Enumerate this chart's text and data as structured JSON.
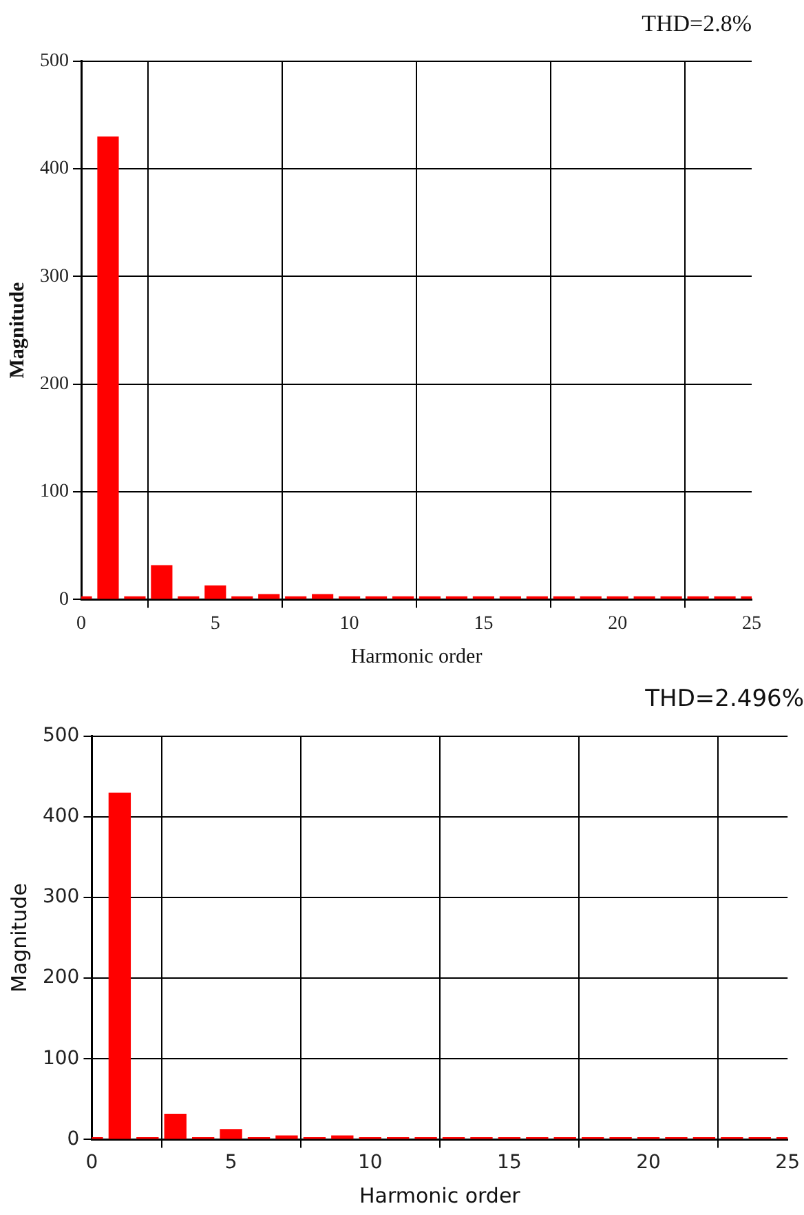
{
  "chart_data": [
    {
      "type": "bar",
      "title": "THD=2.8%",
      "xlabel": "Harmonic order",
      "ylabel": "Magnitude",
      "x": [
        0,
        1,
        2,
        3,
        4,
        5,
        6,
        7,
        8,
        9,
        10,
        11,
        12,
        13,
        14,
        15,
        16,
        17,
        18,
        19,
        20,
        21,
        22,
        23,
        24,
        25
      ],
      "values": [
        3,
        430,
        3,
        32,
        3,
        13,
        3,
        5,
        3,
        5,
        3,
        3,
        3,
        3,
        3,
        3,
        3,
        3,
        3,
        3,
        3,
        3,
        3,
        3,
        3,
        3
      ],
      "color": "#ff0000",
      "xlim": [
        0,
        25
      ],
      "xticks": [
        0,
        5,
        10,
        15,
        20,
        25
      ],
      "ylim": [
        0,
        500
      ],
      "yticks": [
        0,
        100,
        200,
        300,
        400,
        500
      ],
      "grid": true,
      "legend": false
    },
    {
      "type": "bar",
      "title": "THD=2.496%",
      "xlabel": "Harmonic order",
      "ylabel": "Magnitude",
      "x": [
        0,
        1,
        2,
        3,
        4,
        5,
        6,
        7,
        8,
        9,
        10,
        11,
        12,
        13,
        14,
        15,
        16,
        17,
        18,
        19,
        20,
        21,
        22,
        23,
        24,
        25
      ],
      "values": [
        3,
        430,
        3,
        32,
        3,
        13,
        3,
        5,
        3,
        5,
        3,
        3,
        3,
        3,
        3,
        3,
        3,
        3,
        3,
        3,
        3,
        3,
        3,
        3,
        3,
        3
      ],
      "color": "#ff0000",
      "xlim": [
        0,
        25
      ],
      "xticks": [
        0,
        5,
        10,
        15,
        20,
        25
      ],
      "ylim": [
        0,
        500
      ],
      "yticks": [
        0,
        100,
        200,
        300,
        400,
        500
      ],
      "grid": true,
      "legend": false
    }
  ]
}
